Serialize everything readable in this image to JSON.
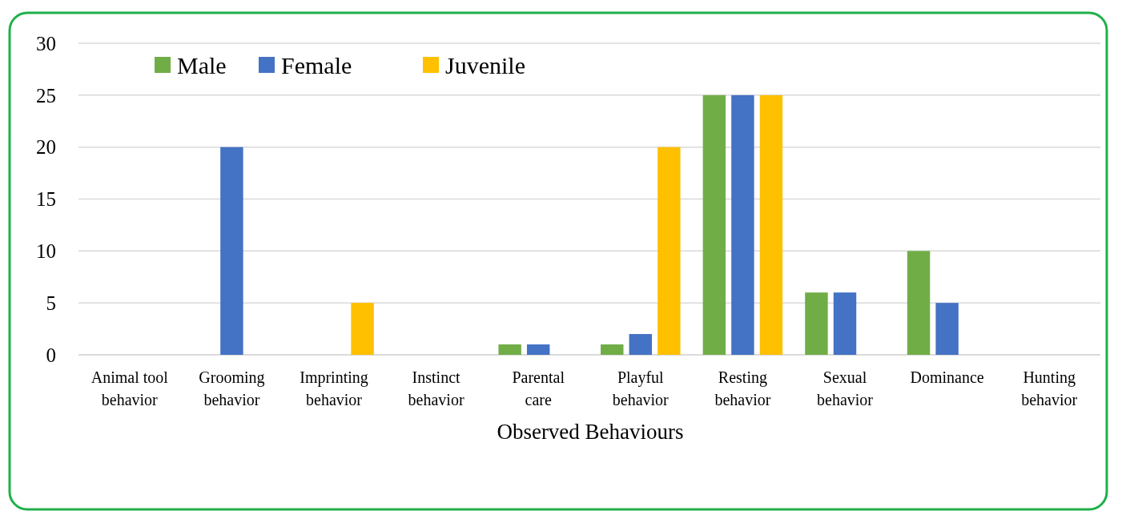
{
  "chart_data": {
    "type": "bar",
    "xlabel": "Observed Behaviours",
    "categories": [
      "Animal tool behavior",
      "Grooming behavior",
      "Imprinting behavior",
      "Instinct behavior",
      "Parental care",
      "Playful behavior",
      "Resting behavior",
      "Sexual behavior",
      "Dominance",
      "Hunting behavior"
    ],
    "series": [
      {
        "name": "Male",
        "color": "#70ad47",
        "values": [
          0,
          0,
          0,
          0,
          1,
          1,
          25,
          6,
          10,
          0
        ]
      },
      {
        "name": "Female",
        "color": "#4472c4",
        "values": [
          0,
          20,
          0,
          0,
          1,
          2,
          25,
          6,
          5,
          0
        ]
      },
      {
        "name": "Juvenile",
        "color": "#ffc000",
        "values": [
          0,
          0,
          5,
          0,
          0,
          20,
          25,
          0,
          0,
          0
        ]
      }
    ],
    "ylim": [
      0,
      30
    ],
    "yticks": [
      0,
      5,
      10,
      15,
      20,
      25,
      30
    ],
    "grid": "y",
    "legend": "top left"
  }
}
